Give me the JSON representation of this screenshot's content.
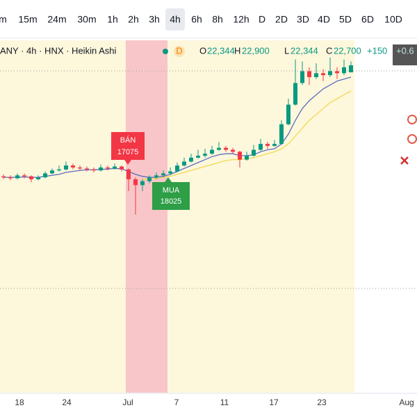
{
  "toolbar": {
    "intervals": [
      "m",
      "15m",
      "24m",
      "30m",
      "1h",
      "2h",
      "3h",
      "4h",
      "6h",
      "8h",
      "12h",
      "D",
      "2D",
      "3D",
      "4D",
      "5D",
      "6D",
      "10D"
    ]
  },
  "legend": {
    "symbol": "ANY · 4h · HNX · Heikin Ashi",
    "badge": "D",
    "ohlc": [
      {
        "key": "O",
        "text": "22,344"
      },
      {
        "key": "H",
        "text": "22,900"
      },
      {
        "key": "L",
        "text": "22,344"
      },
      {
        "key": "C",
        "text": "22,700"
      }
    ],
    "change": "+150",
    "change_pct": "+0.6"
  },
  "signals": [
    {
      "label": "BÁN",
      "price": "17075"
    },
    {
      "label": "MUA",
      "price": "18025"
    }
  ],
  "x_axis": [
    "18",
    "24",
    "Jul",
    "7",
    "11",
    "17",
    "23",
    "Aug"
  ],
  "chart_data": {
    "type": "candlestick",
    "ylim": [
      6000,
      25000
    ],
    "up_color": "#089981",
    "down_color": "#f23645",
    "candles": [
      [
        17050,
        17150,
        16900,
        17000
      ],
      [
        17000,
        17100,
        16850,
        16950
      ],
      [
        16950,
        17200,
        16900,
        17100
      ],
      [
        17100,
        17200,
        16950,
        17050
      ],
      [
        17050,
        17100,
        16750,
        16900
      ],
      [
        16900,
        17100,
        16850,
        17000
      ],
      [
        17000,
        17300,
        16950,
        17200
      ],
      [
        17200,
        17450,
        17150,
        17350
      ],
      [
        17350,
        17600,
        17300,
        17400
      ],
      [
        17400,
        17800,
        17350,
        17600
      ],
      [
        17600,
        17700,
        17400,
        17500
      ],
      [
        17500,
        17600,
        17350,
        17450
      ],
      [
        17450,
        17550,
        17300,
        17400
      ],
      [
        17400,
        17500,
        17250,
        17350
      ],
      [
        17350,
        17650,
        17300,
        17500
      ],
      [
        17500,
        17600,
        17350,
        17450
      ],
      [
        17450,
        17700,
        17400,
        17550
      ],
      [
        17550,
        17600,
        17300,
        17400
      ],
      [
        17400,
        17450,
        16300,
        16900
      ],
      [
        16900,
        17000,
        15100,
        16600
      ],
      [
        16600,
        16900,
        16300,
        16800
      ],
      [
        16800,
        17100,
        16700,
        17000
      ],
      [
        17000,
        17250,
        16900,
        17100
      ],
      [
        17100,
        17350,
        17000,
        17200
      ],
      [
        17200,
        17500,
        17100,
        17300
      ],
      [
        17300,
        17750,
        17250,
        17600
      ],
      [
        17600,
        18000,
        17550,
        17800
      ],
      [
        17800,
        18200,
        17750,
        18000
      ],
      [
        18000,
        18400,
        17950,
        18100
      ],
      [
        18100,
        18450,
        18000,
        18200
      ],
      [
        18200,
        18600,
        18150,
        18400
      ],
      [
        18400,
        18800,
        18350,
        18500
      ],
      [
        18500,
        18600,
        18300,
        18400
      ],
      [
        18400,
        18500,
        18200,
        18300
      ],
      [
        18300,
        18350,
        17500,
        17900
      ],
      [
        17900,
        18300,
        17850,
        18100
      ],
      [
        18100,
        18650,
        18050,
        18400
      ],
      [
        18400,
        18950,
        18350,
        18700
      ],
      [
        18700,
        18800,
        18450,
        18600
      ],
      [
        18600,
        18900,
        18550,
        18700
      ],
      [
        18700,
        19900,
        18650,
        19700
      ],
      [
        19700,
        21000,
        19650,
        20700
      ],
      [
        20700,
        23000,
        20650,
        21800
      ],
      [
        21800,
        22900,
        21700,
        22400
      ],
      [
        22400,
        22600,
        21700,
        22100
      ],
      [
        22100,
        22800,
        22000,
        22300
      ],
      [
        22300,
        22500,
        21900,
        22200
      ],
      [
        22200,
        23100,
        22100,
        22400
      ],
      [
        22400,
        22600,
        22000,
        22300
      ],
      [
        22300,
        23000,
        22200,
        22600
      ],
      [
        22344,
        22900,
        22344,
        22700
      ]
    ],
    "series": [
      {
        "color": "#5b6bbf",
        "values": [
          17000,
          17000,
          17000,
          17020,
          17000,
          17000,
          17050,
          17100,
          17150,
          17250,
          17300,
          17350,
          17380,
          17380,
          17400,
          17420,
          17450,
          17430,
          17300,
          17150,
          17050,
          17000,
          17000,
          17050,
          17150,
          17300,
          17450,
          17600,
          17750,
          17900,
          18050,
          18150,
          18200,
          18200,
          18100,
          18100,
          18150,
          18300,
          18400,
          18450,
          18700,
          19200,
          19900,
          20500,
          20900,
          21200,
          21500,
          21700,
          21900,
          22000,
          22100
        ]
      },
      {
        "color": "#f2d94e",
        "values": [
          null,
          null,
          null,
          null,
          null,
          null,
          null,
          null,
          null,
          null,
          null,
          null,
          null,
          null,
          null,
          null,
          null,
          null,
          null,
          null,
          16900,
          16900,
          16950,
          17000,
          17050,
          17150,
          17250,
          17350,
          17450,
          17550,
          17650,
          17750,
          17850,
          17900,
          17900,
          17950,
          18000,
          18100,
          18200,
          18300,
          18450,
          18700,
          19100,
          19500,
          19900,
          20200,
          20500,
          20800,
          21000,
          21200,
          21400
        ]
      }
    ]
  }
}
